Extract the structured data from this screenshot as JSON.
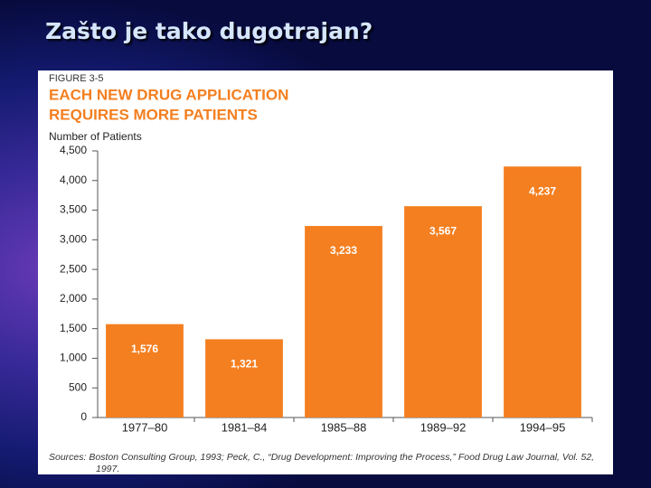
{
  "slide": {
    "title": "Zašto je tako dugotrajan?"
  },
  "chart_data": {
    "type": "bar",
    "figure_label": "FIGURE 3-5",
    "title": [
      "EACH NEW DRUG APPLICATION",
      "REQUIRES MORE PATIENTS"
    ],
    "y_label": "Number of Patients",
    "categories": [
      "1977–80",
      "1981–84",
      "1985–88",
      "1989–92",
      "1994–95"
    ],
    "values": [
      1576,
      1321,
      3233,
      3567,
      4237
    ],
    "value_labels": [
      "1,576",
      "1,321",
      "3,233",
      "3,567",
      "4,237"
    ],
    "color": "#f47f20",
    "ylim": [
      0,
      4500
    ],
    "yticks": [
      0,
      500,
      {
        "value": 1000,
        "label": "1,000"
      },
      {
        "value": 1500,
        "label": "1,500"
      },
      {
        "value": 2000,
        "label": "2,000"
      },
      {
        "value": 2500,
        "label": "2,500"
      },
      {
        "value": 3000,
        "label": "3,000"
      },
      {
        "value": 3500,
        "label": "3,500"
      },
      {
        "value": 4000,
        "label": "4,000"
      },
      {
        "value": 4500,
        "label": "4,500"
      }
    ],
    "grid": false,
    "source": "Sources: Boston Consulting Group, 1993; Peck, C., “Drug Development: Improving the Process,” Food Drug Law Journal, Vol. 52, 1997."
  }
}
